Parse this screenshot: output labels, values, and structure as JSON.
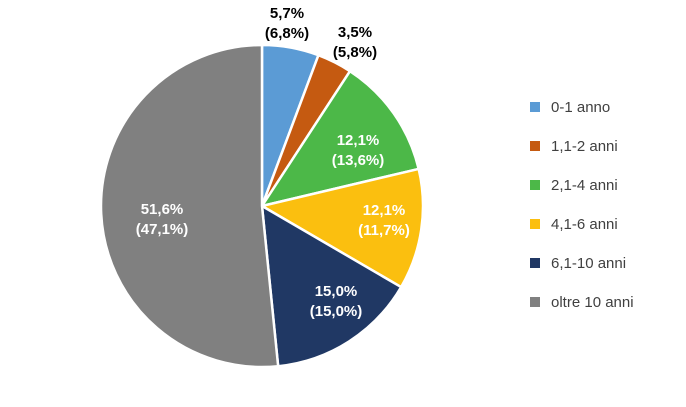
{
  "chart_data": {
    "type": "pie",
    "title": "",
    "categories": [
      "0-1 anno",
      "1,1-2 anni",
      "2,1-4 anni",
      "4,1-6 anni",
      "6,1-10 anni",
      "oltre 10 anni"
    ],
    "values": [
      5.7,
      3.5,
      12.1,
      12.1,
      15.0,
      51.6
    ],
    "secondary_values": [
      6.8,
      5.8,
      13.6,
      11.7,
      15.0,
      47.1
    ],
    "value_labels": [
      "5,7%",
      "3,5%",
      "12,1%",
      "12,1%",
      "15,0%",
      "51,6%"
    ],
    "secondary_labels": [
      "(6,8%)",
      "(5,8%)",
      "(13,6%)",
      "(11,7%)",
      "(15,0%)",
      "(47,1%)"
    ],
    "colors": [
      "#5b9bd5",
      "#c55a11",
      "#4cb848",
      "#fbbf0f",
      "#203864",
      "#808080"
    ],
    "label_colors": [
      "#000000",
      "#000000",
      "#ffffff",
      "#ffffff",
      "#ffffff",
      "#ffffff"
    ],
    "legend": {
      "position": "right"
    }
  }
}
